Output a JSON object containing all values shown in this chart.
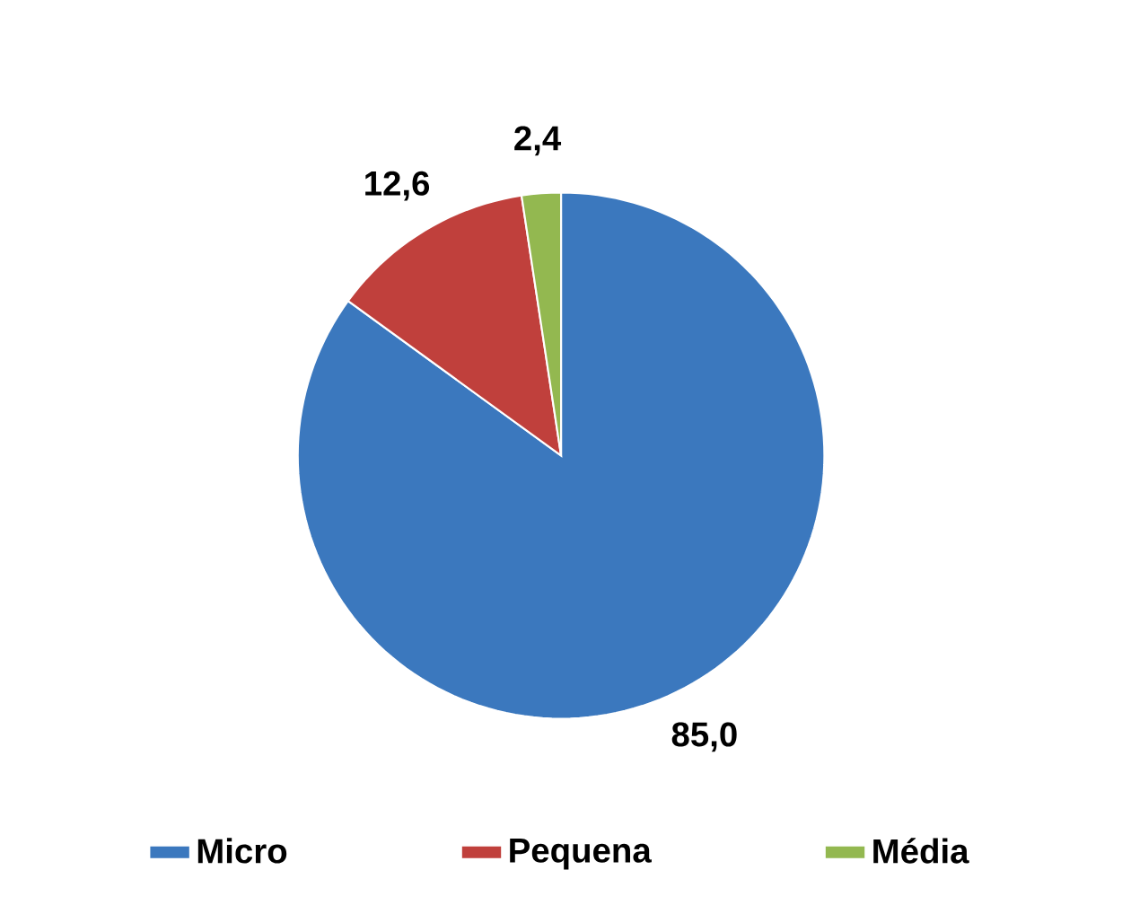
{
  "chart_data": {
    "type": "pie",
    "categories": [
      "Micro",
      "Pequena",
      "Média"
    ],
    "values": [
      85.0,
      12.6,
      2.4
    ],
    "value_labels": [
      "85,0",
      "12,6",
      "2,4"
    ],
    "colors": [
      "#3b78be",
      "#c0403c",
      "#93b850"
    ],
    "legend": "bottom"
  }
}
